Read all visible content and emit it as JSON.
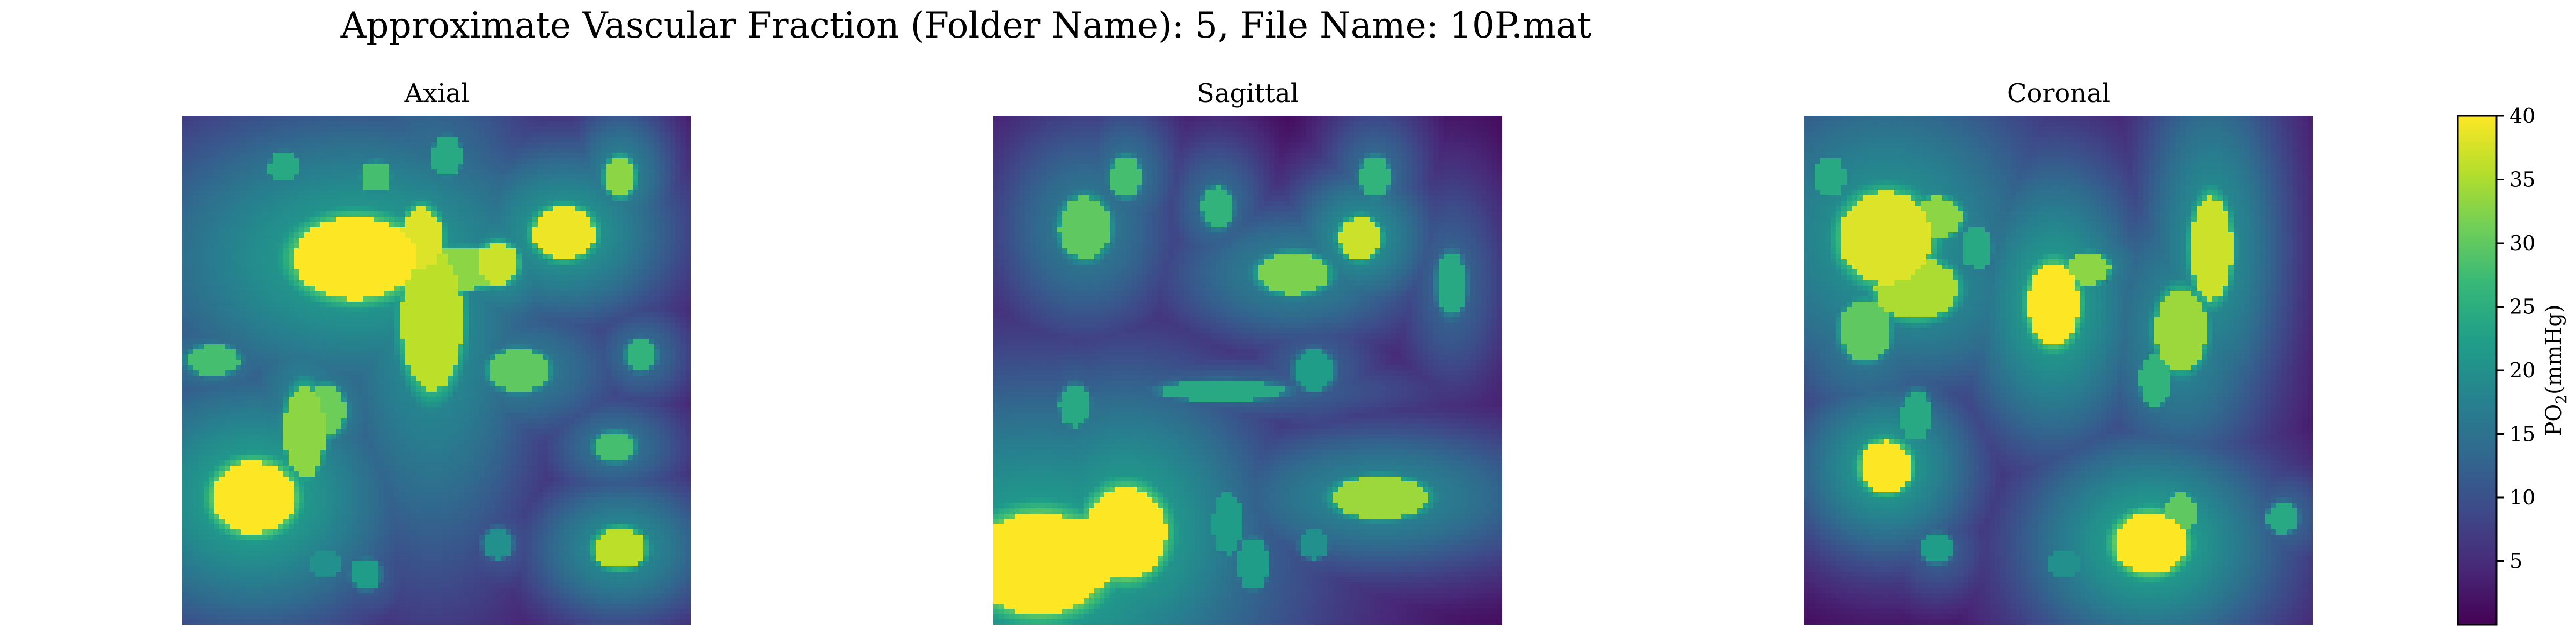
{
  "figure": {
    "title": "Approximate Vascular Fraction (Folder Name): 5, File Name: 10P.mat"
  },
  "chart_data": [
    {
      "type": "heatmap",
      "title": "Axial",
      "colormap": "viridis",
      "value_range": [
        0,
        40
      ],
      "blobs": [
        {
          "x": 0.34,
          "y": 0.28,
          "rx": 0.12,
          "ry": 0.08,
          "v": 41
        },
        {
          "x": 0.47,
          "y": 0.24,
          "rx": 0.04,
          "ry": 0.06,
          "v": 38
        },
        {
          "x": 0.49,
          "y": 0.4,
          "rx": 0.06,
          "ry": 0.14,
          "v": 36
        },
        {
          "x": 0.55,
          "y": 0.3,
          "rx": 0.09,
          "ry": 0.04,
          "v": 33
        },
        {
          "x": 0.62,
          "y": 0.29,
          "rx": 0.04,
          "ry": 0.04,
          "v": 37
        },
        {
          "x": 0.75,
          "y": 0.23,
          "rx": 0.06,
          "ry": 0.05,
          "v": 39
        },
        {
          "x": 0.86,
          "y": 0.12,
          "rx": 0.03,
          "ry": 0.04,
          "v": 33
        },
        {
          "x": 0.14,
          "y": 0.75,
          "rx": 0.08,
          "ry": 0.07,
          "v": 42
        },
        {
          "x": 0.24,
          "y": 0.62,
          "rx": 0.04,
          "ry": 0.09,
          "v": 33
        },
        {
          "x": 0.28,
          "y": 0.58,
          "rx": 0.04,
          "ry": 0.05,
          "v": 31
        },
        {
          "x": 0.06,
          "y": 0.48,
          "rx": 0.05,
          "ry": 0.03,
          "v": 28
        },
        {
          "x": 0.66,
          "y": 0.5,
          "rx": 0.06,
          "ry": 0.04,
          "v": 30
        },
        {
          "x": 0.86,
          "y": 0.85,
          "rx": 0.05,
          "ry": 0.04,
          "v": 36
        },
        {
          "x": 0.85,
          "y": 0.65,
          "rx": 0.04,
          "ry": 0.03,
          "v": 28
        },
        {
          "x": 0.9,
          "y": 0.47,
          "rx": 0.03,
          "ry": 0.03,
          "v": 26
        },
        {
          "x": 0.2,
          "y": 0.1,
          "rx": 0.03,
          "ry": 0.03,
          "v": 24
        },
        {
          "x": 0.38,
          "y": 0.12,
          "rx": 0.03,
          "ry": 0.03,
          "v": 28
        },
        {
          "x": 0.52,
          "y": 0.08,
          "rx": 0.03,
          "ry": 0.04,
          "v": 24
        },
        {
          "x": 0.62,
          "y": 0.84,
          "rx": 0.03,
          "ry": 0.03,
          "v": 20
        },
        {
          "x": 0.36,
          "y": 0.9,
          "rx": 0.03,
          "ry": 0.03,
          "v": 22
        },
        {
          "x": 0.28,
          "y": 0.88,
          "rx": 0.03,
          "ry": 0.03,
          "v": 20
        }
      ]
    },
    {
      "type": "heatmap",
      "title": "Sagittal",
      "colormap": "viridis",
      "value_range": [
        0,
        40
      ],
      "blobs": [
        {
          "x": 0.09,
          "y": 0.88,
          "rx": 0.13,
          "ry": 0.1,
          "v": 42
        },
        {
          "x": 0.26,
          "y": 0.82,
          "rx": 0.08,
          "ry": 0.09,
          "v": 41
        },
        {
          "x": 0.18,
          "y": 0.86,
          "rx": 0.08,
          "ry": 0.07,
          "v": 40
        },
        {
          "x": 0.76,
          "y": 0.75,
          "rx": 0.09,
          "ry": 0.04,
          "v": 34
        },
        {
          "x": 0.18,
          "y": 0.22,
          "rx": 0.05,
          "ry": 0.06,
          "v": 30
        },
        {
          "x": 0.26,
          "y": 0.12,
          "rx": 0.03,
          "ry": 0.04,
          "v": 28
        },
        {
          "x": 0.44,
          "y": 0.18,
          "rx": 0.03,
          "ry": 0.04,
          "v": 26
        },
        {
          "x": 0.59,
          "y": 0.31,
          "rx": 0.07,
          "ry": 0.04,
          "v": 32
        },
        {
          "x": 0.72,
          "y": 0.24,
          "rx": 0.04,
          "ry": 0.04,
          "v": 37
        },
        {
          "x": 0.75,
          "y": 0.12,
          "rx": 0.03,
          "ry": 0.04,
          "v": 26
        },
        {
          "x": 0.9,
          "y": 0.33,
          "rx": 0.03,
          "ry": 0.06,
          "v": 24
        },
        {
          "x": 0.45,
          "y": 0.54,
          "rx": 0.12,
          "ry": 0.02,
          "v": 24
        },
        {
          "x": 0.63,
          "y": 0.5,
          "rx": 0.04,
          "ry": 0.04,
          "v": 22
        },
        {
          "x": 0.16,
          "y": 0.57,
          "rx": 0.03,
          "ry": 0.04,
          "v": 24
        },
        {
          "x": 0.46,
          "y": 0.8,
          "rx": 0.03,
          "ry": 0.06,
          "v": 22
        },
        {
          "x": 0.51,
          "y": 0.88,
          "rx": 0.03,
          "ry": 0.05,
          "v": 22
        },
        {
          "x": 0.63,
          "y": 0.84,
          "rx": 0.03,
          "ry": 0.03,
          "v": 20
        }
      ]
    },
    {
      "type": "heatmap",
      "title": "Coronal",
      "colormap": "viridis",
      "value_range": [
        0,
        40
      ],
      "blobs": [
        {
          "x": 0.16,
          "y": 0.24,
          "rx": 0.09,
          "ry": 0.09,
          "v": 38
        },
        {
          "x": 0.22,
          "y": 0.34,
          "rx": 0.08,
          "ry": 0.06,
          "v": 35
        },
        {
          "x": 0.26,
          "y": 0.2,
          "rx": 0.05,
          "ry": 0.04,
          "v": 33
        },
        {
          "x": 0.12,
          "y": 0.42,
          "rx": 0.05,
          "ry": 0.06,
          "v": 30
        },
        {
          "x": 0.49,
          "y": 0.37,
          "rx": 0.05,
          "ry": 0.08,
          "v": 41
        },
        {
          "x": 0.56,
          "y": 0.3,
          "rx": 0.04,
          "ry": 0.03,
          "v": 33
        },
        {
          "x": 0.8,
          "y": 0.26,
          "rx": 0.04,
          "ry": 0.1,
          "v": 37
        },
        {
          "x": 0.74,
          "y": 0.42,
          "rx": 0.05,
          "ry": 0.08,
          "v": 34
        },
        {
          "x": 0.69,
          "y": 0.52,
          "rx": 0.03,
          "ry": 0.05,
          "v": 26
        },
        {
          "x": 0.16,
          "y": 0.69,
          "rx": 0.05,
          "ry": 0.05,
          "v": 40
        },
        {
          "x": 0.22,
          "y": 0.59,
          "rx": 0.03,
          "ry": 0.05,
          "v": 24
        },
        {
          "x": 0.68,
          "y": 0.84,
          "rx": 0.07,
          "ry": 0.06,
          "v": 42
        },
        {
          "x": 0.74,
          "y": 0.78,
          "rx": 0.03,
          "ry": 0.04,
          "v": 30
        },
        {
          "x": 0.94,
          "y": 0.79,
          "rx": 0.03,
          "ry": 0.03,
          "v": 24
        },
        {
          "x": 0.34,
          "y": 0.26,
          "rx": 0.03,
          "ry": 0.04,
          "v": 24
        },
        {
          "x": 0.05,
          "y": 0.12,
          "rx": 0.03,
          "ry": 0.04,
          "v": 24
        },
        {
          "x": 0.26,
          "y": 0.85,
          "rx": 0.03,
          "ry": 0.03,
          "v": 22
        },
        {
          "x": 0.51,
          "y": 0.88,
          "rx": 0.03,
          "ry": 0.03,
          "v": 20
        }
      ]
    }
  ],
  "colorbar": {
    "label": "PO",
    "label_subscript": "2",
    "label_units": "(mmHg)",
    "ticks": [
      5,
      10,
      15,
      20,
      25,
      30,
      35,
      40
    ],
    "tick_labels": [
      "5",
      "10",
      "15",
      "20",
      "25",
      "30",
      "35",
      "40"
    ],
    "range": [
      0,
      40
    ],
    "colormap": "viridis"
  },
  "colors": {
    "viridis": [
      "#440154",
      "#482878",
      "#3e4989",
      "#31688e",
      "#26828e",
      "#1f9e89",
      "#35b779",
      "#6ece58",
      "#b5de2b",
      "#fde725"
    ]
  }
}
